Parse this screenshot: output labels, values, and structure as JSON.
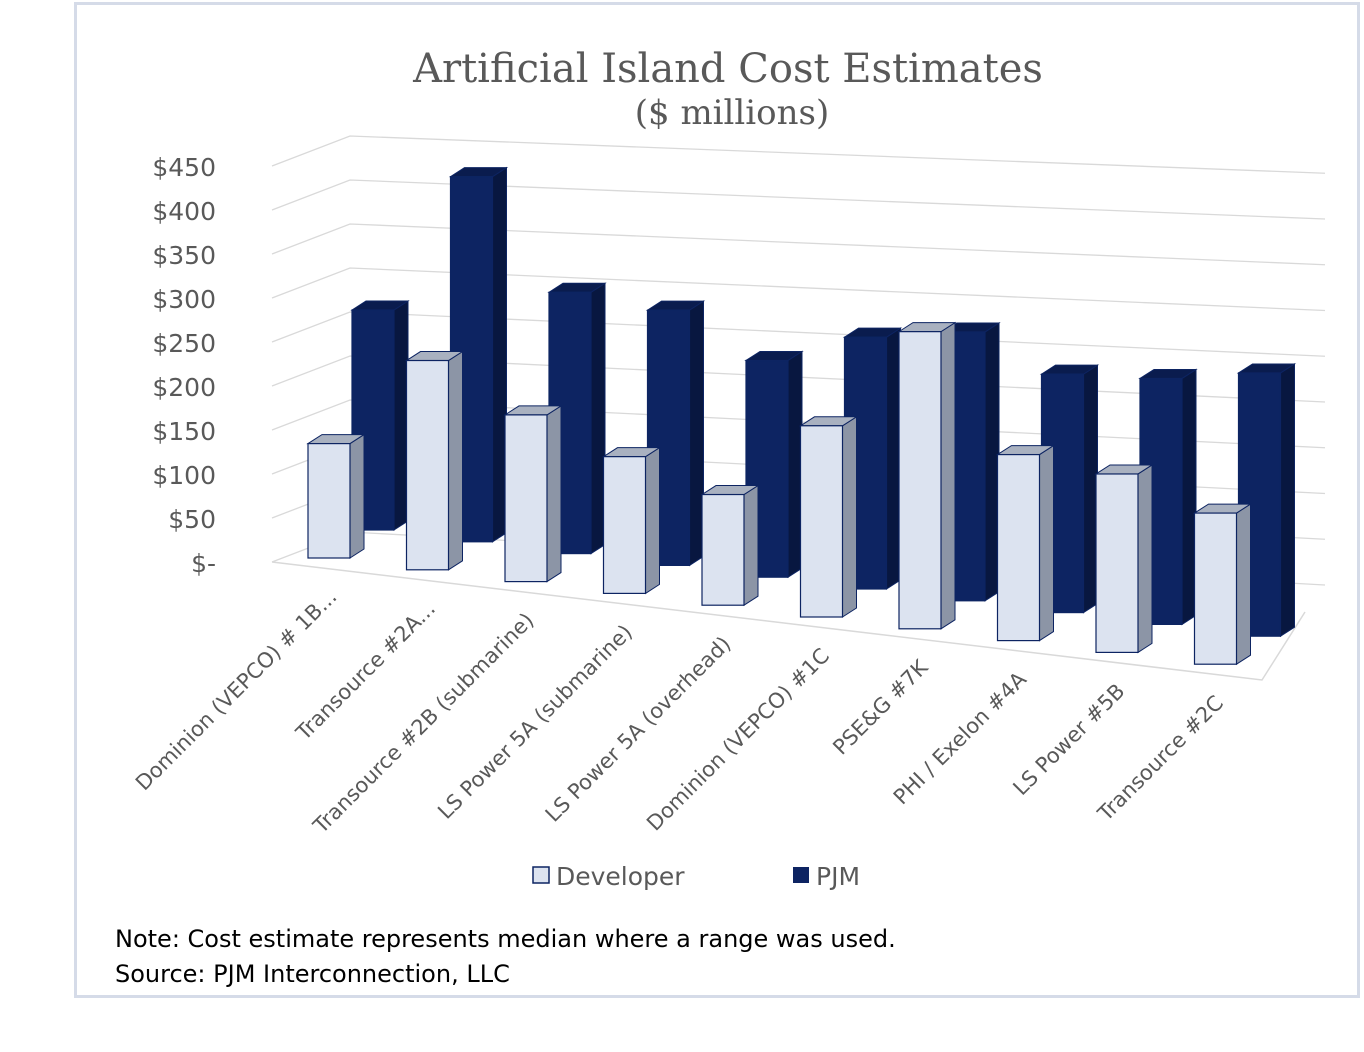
{
  "chart_data": {
    "type": "bar",
    "title": "Artificial Island Cost Estimates",
    "subtitle": "($ millions)",
    "xlabel": "",
    "ylabel": "",
    "ylim": [
      0,
      450
    ],
    "yticks": [
      "$-",
      "$50",
      "$100",
      "$150",
      "$200",
      "$250",
      "$300",
      "$350",
      "$400",
      "$450"
    ],
    "grid": true,
    "legend_position": "bottom",
    "categories": [
      "Dominion (VEPCO) # 1B...",
      "Transource #2A...",
      "Transource #2B (submarine)",
      "LS Power 5A (submarine)",
      "LS Power 5A (overhead)",
      "Dominion (VEPCO) #1C",
      "PSE&G #7K",
      "PHI / Exelon #4A",
      "LS Power #5B",
      "Transource #2C"
    ],
    "series": [
      {
        "name": "Developer",
        "color": "#dce3f0",
        "side": "#8c95a6",
        "values": [
          130,
          235,
          185,
          150,
          120,
          205,
          315,
          195,
          185,
          155
        ]
      },
      {
        "name": "PJM",
        "color": "#0d2462",
        "side": "#081740",
        "values": [
          250,
          410,
          290,
          280,
          235,
          270,
          285,
          250,
          255,
          270
        ]
      }
    ]
  },
  "note": "Note: Cost estimate represents median where a range was used.",
  "source": "Source: PJM Interconnection, LLC"
}
